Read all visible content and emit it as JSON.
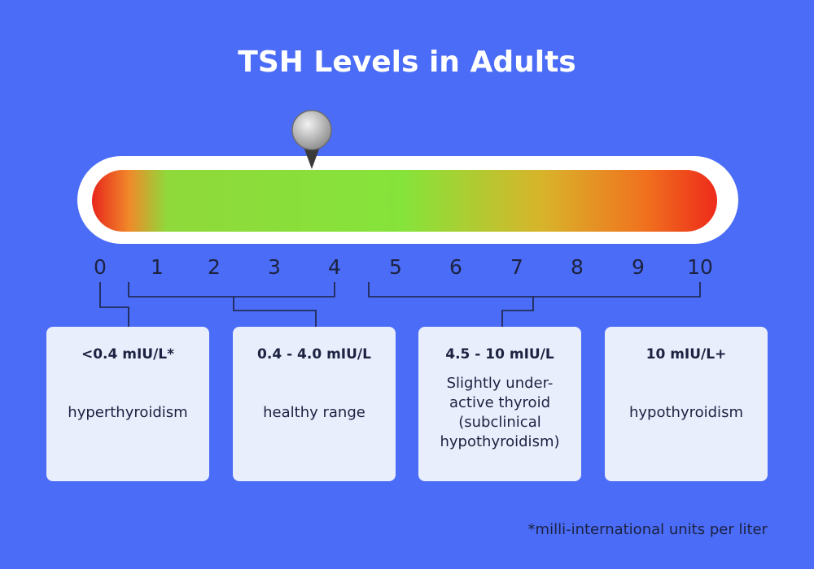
{
  "title": "TSH Levels in Adults",
  "scale": {
    "ticks": [
      0,
      1,
      2,
      3,
      4,
      5,
      6,
      7,
      8,
      9,
      10
    ]
  },
  "boxes": [
    {
      "range": "<0.4 mIU/L*",
      "description": [
        "hyperthyroidism"
      ]
    },
    {
      "range": "0.4 - 4.0 mIU/L",
      "description": [
        "healthy range"
      ]
    },
    {
      "range": "4.5 - 10 mIU/L",
      "description": [
        "Slightly under-",
        "active thyroid",
        "(subclinical",
        "hypothyroidism)"
      ]
    },
    {
      "range": "10 mIU/L+",
      "description": [
        "hypothyroidism"
      ]
    }
  ],
  "footnote": "*milli-international units per liter"
}
